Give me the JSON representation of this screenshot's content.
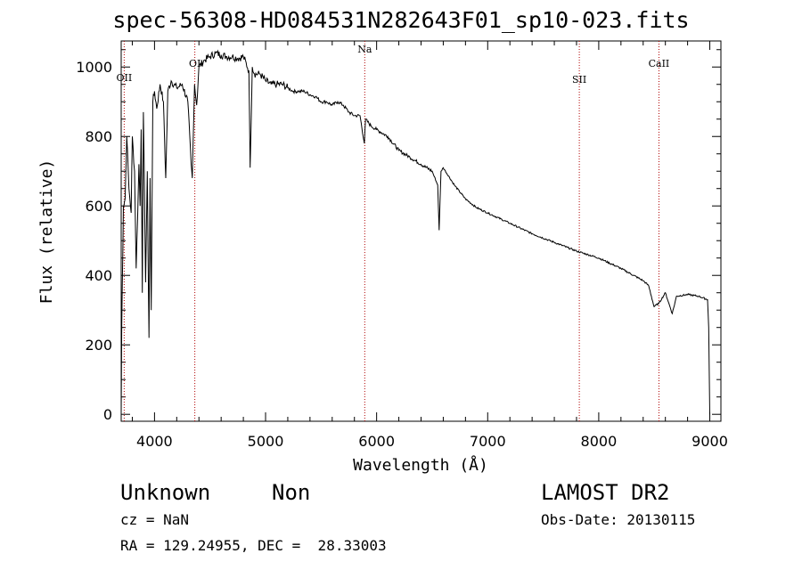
{
  "chart_data": {
    "type": "line",
    "title": "spec-56308-HD084531N282643F01_sp10-023.fits",
    "xlabel": "Wavelength (Å)",
    "ylabel": "Flux (relative)",
    "xlim": [
      3700,
      9100
    ],
    "ylim": [
      -20,
      1075
    ],
    "xticks": [
      4000,
      5000,
      6000,
      7000,
      8000,
      9000
    ],
    "yticks": [
      0,
      200,
      400,
      600,
      800,
      1000
    ],
    "grid": false,
    "lines": [
      {
        "label": "OII",
        "x": 3727
      },
      {
        "label": "OI",
        "x": 4363
      },
      {
        "label": "Na",
        "x": 5893
      },
      {
        "label": "SII",
        "x": 7825
      },
      {
        "label": "CaII",
        "x": 8542
      }
    ],
    "series": [
      {
        "x": [
          3700,
          3705,
          3720,
          3735,
          3750,
          3770,
          3790,
          3800,
          3820,
          3835,
          3860,
          3870,
          3880,
          3890,
          3900,
          3920,
          3935,
          3950,
          3960,
          3970,
          3985,
          4000,
          4020,
          4050,
          4080,
          4101,
          4120,
          4150,
          4200,
          4250,
          4300,
          4330,
          4340,
          4360,
          4380,
          4400,
          4450,
          4500,
          4550,
          4600,
          4650,
          4700,
          4750,
          4800,
          4850,
          4861,
          4880,
          4900,
          4950,
          5000,
          5050,
          5100,
          5150,
          5200,
          5250,
          5300,
          5350,
          5400,
          5450,
          5500,
          5550,
          5600,
          5650,
          5700,
          5750,
          5800,
          5850,
          5890,
          5900,
          5950,
          6000,
          6100,
          6200,
          6300,
          6400,
          6500,
          6550,
          6563,
          6580,
          6600,
          6700,
          6800,
          6900,
          7000,
          7200,
          7400,
          7600,
          7800,
          8000,
          8200,
          8400,
          8450,
          8498,
          8542,
          8600,
          8662,
          8700,
          8800,
          8900,
          8980,
          8990,
          9000
        ],
        "values": [
          0,
          250,
          600,
          620,
          800,
          650,
          580,
          800,
          700,
          420,
          720,
          600,
          820,
          350,
          870,
          380,
          700,
          220,
          680,
          300,
          900,
          930,
          880,
          950,
          900,
          680,
          930,
          960,
          940,
          950,
          900,
          720,
          680,
          950,
          890,
          1000,
          1020,
          1030,
          1040,
          1035,
          1030,
          1030,
          1025,
          1030,
          990,
          710,
          1000,
          980,
          980,
          960,
          950,
          950,
          950,
          940,
          930,
          930,
          930,
          920,
          915,
          900,
          900,
          890,
          900,
          890,
          870,
          860,
          860,
          780,
          850,
          830,
          820,
          800,
          760,
          740,
          720,
          700,
          660,
          530,
          700,
          710,
          660,
          620,
          595,
          580,
          550,
          520,
          495,
          470,
          450,
          420,
          385,
          370,
          310,
          320,
          350,
          290,
          340,
          345,
          340,
          330,
          250,
          0
        ]
      }
    ]
  },
  "info": {
    "object_class": "Unknown",
    "object_subclass": "Non",
    "survey": "LAMOST DR2",
    "cz": "cz = NaN",
    "obs_date": "Obs-Date: 20130115",
    "coords": "RA = 129.24955, DEC =  28.33003"
  }
}
